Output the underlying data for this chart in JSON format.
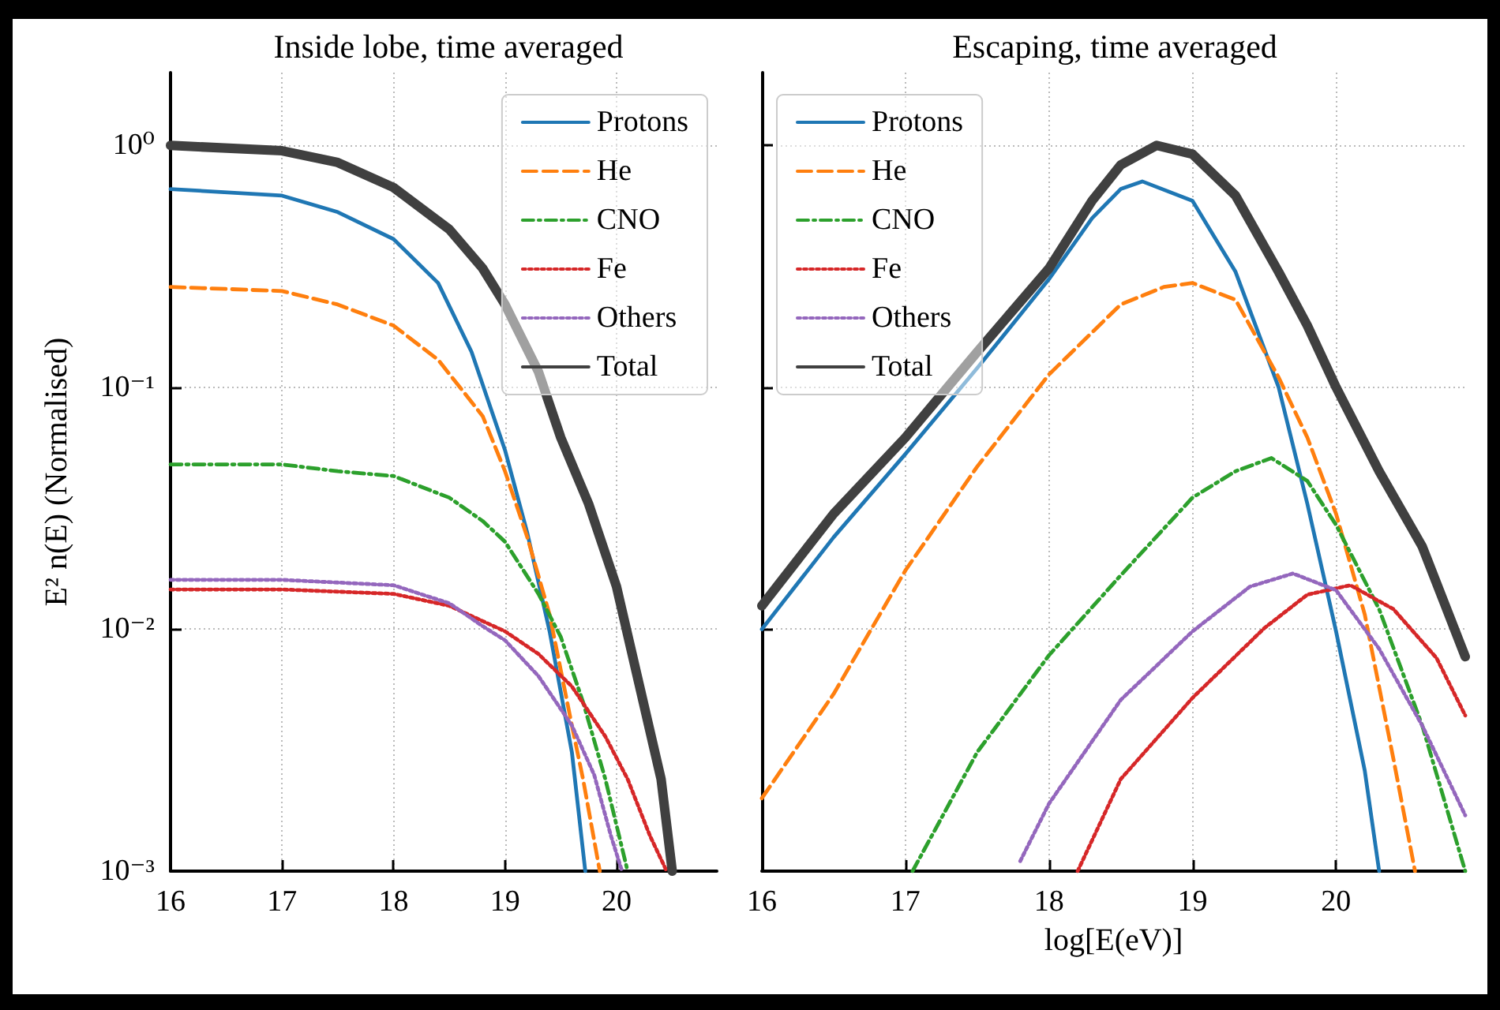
{
  "chart_data": [
    {
      "type": "line",
      "title": "Inside lobe, time averaged",
      "ylabel": "E² n(E) (Normalised)",
      "log": "y",
      "grid": true,
      "legend": "top right",
      "marker": "none",
      "xlim": [
        16,
        20.9
      ],
      "xticks": [
        16,
        17,
        18,
        19,
        20
      ],
      "ylim": [
        0.001,
        2
      ],
      "yticks": [
        {
          "value": 0.001,
          "label": "10⁻³"
        },
        {
          "value": 0.01,
          "label": "10⁻²"
        },
        {
          "value": 0.1,
          "label": "10⁻¹"
        },
        {
          "value": 1,
          "label": "10⁰"
        }
      ],
      "series": [
        {
          "name": "Protons",
          "color": "#1f77b4",
          "line_style": "solid",
          "x": [
            16,
            17,
            17.5,
            18,
            18.4,
            18.7,
            19,
            19.2,
            19.4,
            19.6,
            19.72
          ],
          "values": [
            0.66,
            0.62,
            0.53,
            0.41,
            0.27,
            0.14,
            0.055,
            0.025,
            0.0098,
            0.0031,
            0.001
          ]
        },
        {
          "name": "He",
          "color": "#ff7f0e",
          "line_style": "dashed",
          "x": [
            16,
            17,
            17.5,
            18,
            18.4,
            18.8,
            19,
            19.2,
            19.4,
            19.6,
            19.7,
            19.85
          ],
          "values": [
            0.26,
            0.25,
            0.22,
            0.18,
            0.13,
            0.076,
            0.045,
            0.024,
            0.0115,
            0.004,
            0.0024,
            0.001
          ]
        },
        {
          "name": "CNO",
          "color": "#2ca02c",
          "line_style": "dashdot",
          "x": [
            16,
            17,
            17.5,
            18,
            18.5,
            18.8,
            19,
            19.3,
            19.5,
            19.7,
            19.9,
            20.1
          ],
          "values": [
            0.048,
            0.048,
            0.045,
            0.043,
            0.035,
            0.028,
            0.023,
            0.014,
            0.0093,
            0.005,
            0.0024,
            0.001
          ]
        },
        {
          "name": "Fe",
          "color": "#d62728",
          "line_style": "dotted",
          "x": [
            16,
            17,
            18,
            18.5,
            19,
            19.3,
            19.6,
            19.9,
            20.1,
            20.3,
            20.45
          ],
          "values": [
            0.0146,
            0.0146,
            0.014,
            0.0125,
            0.0098,
            0.0079,
            0.0058,
            0.0036,
            0.0024,
            0.0014,
            0.001
          ]
        },
        {
          "name": "Others",
          "color": "#9467bd",
          "line_style": "dotted",
          "x": [
            16,
            17,
            18,
            18.5,
            18.8,
            19,
            19.3,
            19.6,
            19.8,
            19.95,
            20.05
          ],
          "values": [
            0.016,
            0.016,
            0.0152,
            0.0128,
            0.0103,
            0.009,
            0.0064,
            0.004,
            0.0025,
            0.0014,
            0.001
          ]
        },
        {
          "name": "Total",
          "color": "#404040",
          "line_style": "solid",
          "x": [
            16,
            17,
            17.5,
            18,
            18.5,
            18.8,
            19,
            19.3,
            19.5,
            19.75,
            20,
            20.2,
            20.4,
            20.5
          ],
          "values": [
            1.0,
            0.95,
            0.85,
            0.67,
            0.45,
            0.31,
            0.22,
            0.116,
            0.062,
            0.033,
            0.015,
            0.006,
            0.0024,
            0.001
          ]
        }
      ]
    },
    {
      "type": "line",
      "title": "Escaping, time averaged",
      "xlabel": "log[E(eV)]",
      "log": "y",
      "grid": true,
      "legend": "top left",
      "marker": "none",
      "tick_labels": "x",
      "xlim": [
        16,
        20.9
      ],
      "xticks": [
        16,
        17,
        18,
        19,
        20
      ],
      "ylim": [
        0.001,
        2
      ],
      "yticks": [
        {
          "value": 0.001,
          "label": null
        },
        {
          "value": 0.01,
          "label": null
        },
        {
          "value": 0.1,
          "label": null
        },
        {
          "value": 1,
          "label": null
        }
      ],
      "series": [
        {
          "name": "Protons",
          "color": "#1f77b4",
          "line_style": "solid",
          "x": [
            16,
            16.5,
            17,
            17.5,
            18,
            18.3,
            18.5,
            18.65,
            19,
            19.3,
            19.6,
            19.8,
            20,
            20.2,
            20.3
          ],
          "values": [
            0.01,
            0.024,
            0.053,
            0.12,
            0.28,
            0.5,
            0.66,
            0.71,
            0.59,
            0.3,
            0.1,
            0.033,
            0.0098,
            0.0026,
            0.001
          ]
        },
        {
          "name": "He",
          "color": "#ff7f0e",
          "line_style": "dashed",
          "x": [
            16,
            16.5,
            17,
            17.5,
            18,
            18.5,
            18.8,
            19,
            19.3,
            19.6,
            19.8,
            20,
            20.2,
            20.4,
            20.55
          ],
          "values": [
            0.002,
            0.0054,
            0.0175,
            0.047,
            0.113,
            0.22,
            0.26,
            0.27,
            0.23,
            0.11,
            0.062,
            0.03,
            0.0115,
            0.0029,
            0.001
          ]
        },
        {
          "name": "CNO",
          "color": "#2ca02c",
          "line_style": "dashdot",
          "x": [
            17.05,
            17.5,
            18,
            18.5,
            19,
            19.3,
            19.55,
            19.8,
            20,
            20.3,
            20.6,
            20.9
          ],
          "values": [
            0.001,
            0.0031,
            0.0078,
            0.0167,
            0.035,
            0.045,
            0.051,
            0.041,
            0.027,
            0.0121,
            0.004,
            0.001
          ]
        },
        {
          "name": "Fe",
          "color": "#d62728",
          "line_style": "dotted",
          "x": [
            18.2,
            18.5,
            19,
            19.5,
            19.8,
            20.1,
            20.4,
            20.7,
            20.9
          ],
          "values": [
            0.001,
            0.0024,
            0.0052,
            0.0101,
            0.0139,
            0.0152,
            0.0121,
            0.0076,
            0.0044
          ]
        },
        {
          "name": "Others",
          "color": "#9467bd",
          "line_style": "dotted",
          "x": [
            17.8,
            18,
            18.5,
            19,
            19.4,
            19.7,
            20,
            20.3,
            20.6,
            20.9
          ],
          "values": [
            0.0011,
            0.0019,
            0.0051,
            0.0098,
            0.015,
            0.017,
            0.0145,
            0.0083,
            0.004,
            0.0017
          ]
        },
        {
          "name": "Total",
          "color": "#404040",
          "line_style": "solid",
          "x": [
            16,
            16.5,
            17,
            17.5,
            18,
            18.3,
            18.5,
            18.75,
            19,
            19.3,
            19.6,
            19.8,
            20,
            20.3,
            20.6,
            20.9
          ],
          "values": [
            0.0125,
            0.03,
            0.062,
            0.14,
            0.31,
            0.59,
            0.83,
            1.0,
            0.92,
            0.62,
            0.3,
            0.18,
            0.1,
            0.045,
            0.022,
            0.0077
          ]
        }
      ]
    }
  ]
}
